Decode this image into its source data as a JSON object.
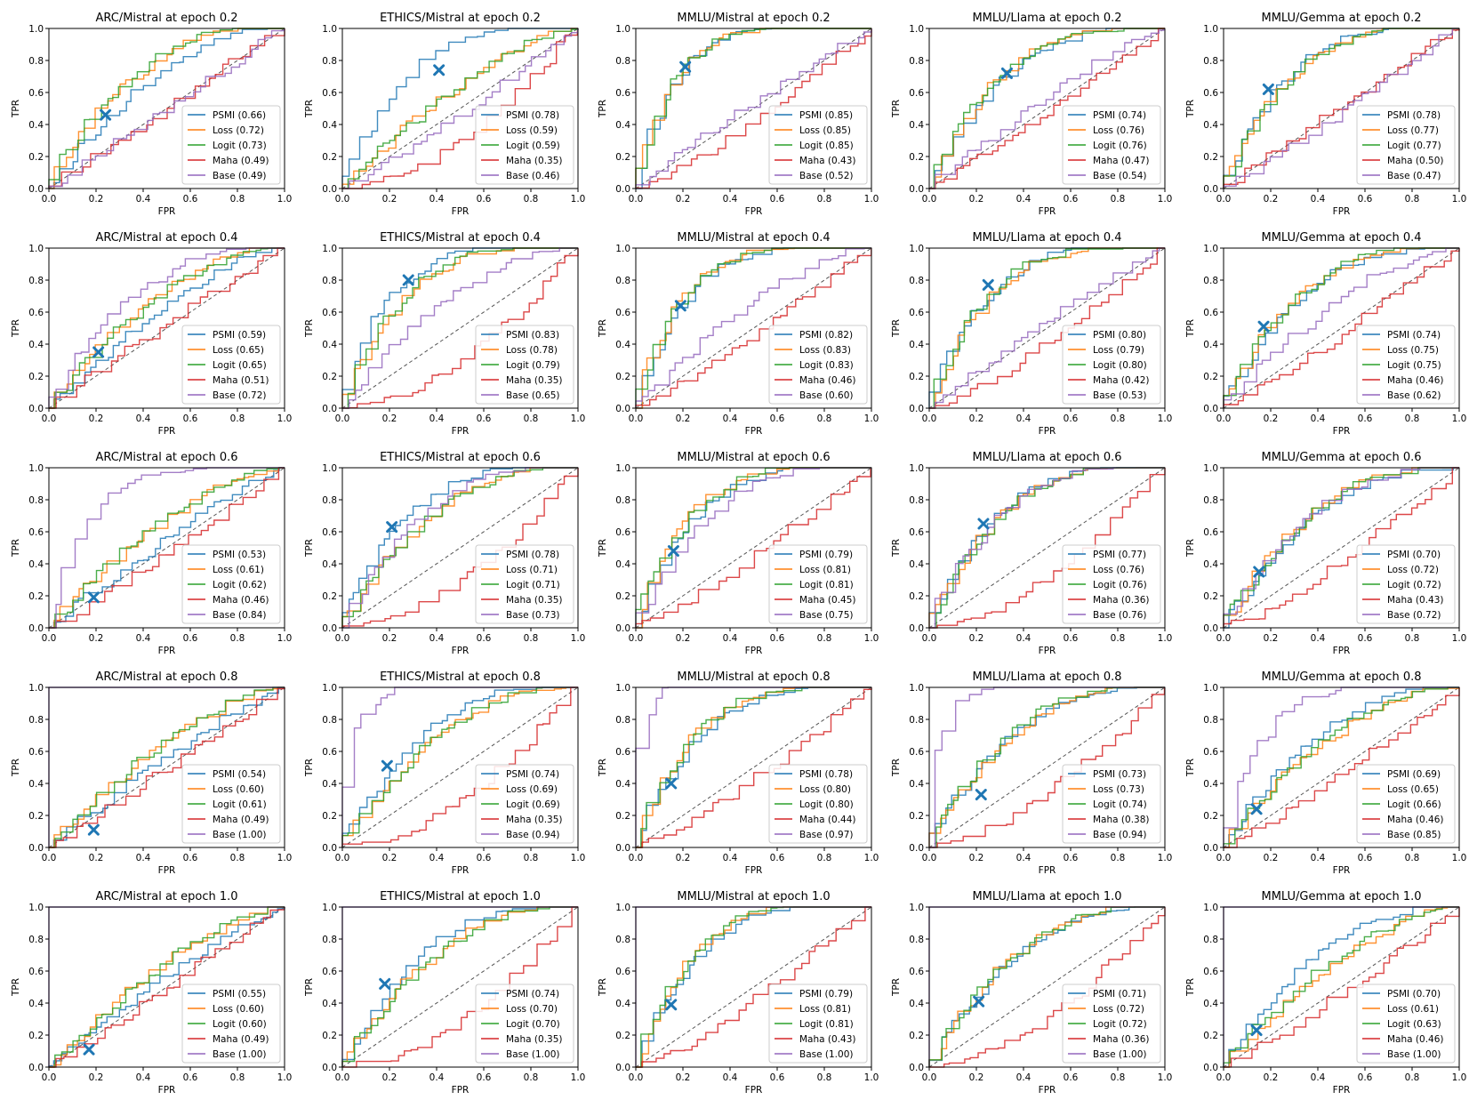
{
  "colors": {
    "PSMI": "#1f77b4",
    "Loss": "#ff7f0e",
    "Logit": "#2ca02c",
    "Maha": "#d62728",
    "Base": "#9467bd",
    "diagonal": "#555555",
    "marker": "#1f77b4"
  },
  "chart_data": {
    "type": "line",
    "layout": "5 rows x 5 columns grid of ROC curves",
    "xlabel": "FPR",
    "ylabel": "TPR",
    "xlim": [
      0,
      1
    ],
    "ylim": [
      0,
      1
    ],
    "ticks": [
      "0.0",
      "0.2",
      "0.4",
      "0.6",
      "0.8",
      "1.0"
    ],
    "legend_position": "lower-right",
    "series_order": [
      "PSMI",
      "Loss",
      "Logit",
      "Maha",
      "Base"
    ],
    "rows": [
      {
        "epoch": "0.2",
        "charts": [
          {
            "title": "ARC/Mistral at epoch 0.2",
            "marker": [
              0.24,
              0.46
            ],
            "auc": {
              "PSMI": "0.66",
              "Loss": "0.72",
              "Logit": "0.73",
              "Maha": "0.49",
              "Base": "0.49"
            }
          },
          {
            "title": "ETHICS/Mistral at epoch 0.2",
            "marker": [
              0.41,
              0.74
            ],
            "auc": {
              "PSMI": "0.78",
              "Loss": "0.59",
              "Logit": "0.59",
              "Maha": "0.35",
              "Base": "0.46"
            }
          },
          {
            "title": "MMLU/Mistral at epoch 0.2",
            "marker": [
              0.21,
              0.76
            ],
            "auc": {
              "PSMI": "0.85",
              "Loss": "0.85",
              "Logit": "0.85",
              "Maha": "0.43",
              "Base": "0.52"
            }
          },
          {
            "title": "MMLU/Llama at epoch 0.2",
            "marker": [
              0.33,
              0.72
            ],
            "auc": {
              "PSMI": "0.74",
              "Loss": "0.76",
              "Logit": "0.76",
              "Maha": "0.47",
              "Base": "0.54"
            }
          },
          {
            "title": "MMLU/Gemma at epoch 0.2",
            "marker": [
              0.19,
              0.62
            ],
            "auc": {
              "PSMI": "0.78",
              "Loss": "0.77",
              "Logit": "0.77",
              "Maha": "0.50",
              "Base": "0.47"
            }
          }
        ]
      },
      {
        "epoch": "0.4",
        "charts": [
          {
            "title": "ARC/Mistral at epoch 0.4",
            "marker": [
              0.21,
              0.35
            ],
            "auc": {
              "PSMI": "0.59",
              "Loss": "0.65",
              "Logit": "0.65",
              "Maha": "0.51",
              "Base": "0.72"
            }
          },
          {
            "title": "ETHICS/Mistral at epoch 0.4",
            "marker": [
              0.28,
              0.8
            ],
            "auc": {
              "PSMI": "0.83",
              "Loss": "0.78",
              "Logit": "0.79",
              "Maha": "0.35",
              "Base": "0.65"
            }
          },
          {
            "title": "MMLU/Mistral at epoch 0.4",
            "marker": [
              0.19,
              0.64
            ],
            "auc": {
              "PSMI": "0.82",
              "Loss": "0.83",
              "Logit": "0.83",
              "Maha": "0.46",
              "Base": "0.60"
            }
          },
          {
            "title": "MMLU/Llama at epoch 0.4",
            "marker": [
              0.25,
              0.77
            ],
            "auc": {
              "PSMI": "0.80",
              "Loss": "0.79",
              "Logit": "0.80",
              "Maha": "0.42",
              "Base": "0.53"
            }
          },
          {
            "title": "MMLU/Gemma at epoch 0.4",
            "marker": [
              0.17,
              0.51
            ],
            "auc": {
              "PSMI": "0.74",
              "Loss": "0.75",
              "Logit": "0.75",
              "Maha": "0.46",
              "Base": "0.62"
            }
          }
        ]
      },
      {
        "epoch": "0.6",
        "charts": [
          {
            "title": "ARC/Mistral at epoch 0.6",
            "marker": [
              0.19,
              0.19
            ],
            "auc": {
              "PSMI": "0.53",
              "Loss": "0.61",
              "Logit": "0.62",
              "Maha": "0.46",
              "Base": "0.84"
            }
          },
          {
            "title": "ETHICS/Mistral at epoch 0.6",
            "marker": [
              0.21,
              0.63
            ],
            "auc": {
              "PSMI": "0.78",
              "Loss": "0.71",
              "Logit": "0.71",
              "Maha": "0.35",
              "Base": "0.73"
            }
          },
          {
            "title": "MMLU/Mistral at epoch 0.6",
            "marker": [
              0.16,
              0.48
            ],
            "auc": {
              "PSMI": "0.79",
              "Loss": "0.81",
              "Logit": "0.81",
              "Maha": "0.45",
              "Base": "0.75"
            }
          },
          {
            "title": "MMLU/Llama at epoch 0.6",
            "marker": [
              0.23,
              0.65
            ],
            "auc": {
              "PSMI": "0.77",
              "Loss": "0.76",
              "Logit": "0.76",
              "Maha": "0.36",
              "Base": "0.76"
            }
          },
          {
            "title": "MMLU/Gemma at epoch 0.6",
            "marker": [
              0.15,
              0.35
            ],
            "auc": {
              "PSMI": "0.70",
              "Loss": "0.72",
              "Logit": "0.72",
              "Maha": "0.43",
              "Base": "0.72"
            }
          }
        ]
      },
      {
        "epoch": "0.8",
        "charts": [
          {
            "title": "ARC/Mistral at epoch 0.8",
            "marker": [
              0.19,
              0.11
            ],
            "auc": {
              "PSMI": "0.54",
              "Loss": "0.60",
              "Logit": "0.61",
              "Maha": "0.49",
              "Base": "1.00"
            }
          },
          {
            "title": "ETHICS/Mistral at epoch 0.8",
            "marker": [
              0.19,
              0.51
            ],
            "auc": {
              "PSMI": "0.74",
              "Loss": "0.69",
              "Logit": "0.69",
              "Maha": "0.35",
              "Base": "0.94"
            }
          },
          {
            "title": "MMLU/Mistral at epoch 0.8",
            "marker": [
              0.15,
              0.4
            ],
            "auc": {
              "PSMI": "0.78",
              "Loss": "0.80",
              "Logit": "0.80",
              "Maha": "0.44",
              "Base": "0.97"
            }
          },
          {
            "title": "MMLU/Llama at epoch 0.8",
            "marker": [
              0.22,
              0.33
            ],
            "auc": {
              "PSMI": "0.73",
              "Loss": "0.73",
              "Logit": "0.74",
              "Maha": "0.38",
              "Base": "0.94"
            }
          },
          {
            "title": "MMLU/Gemma at epoch 0.8",
            "marker": [
              0.14,
              0.24
            ],
            "auc": {
              "PSMI": "0.69",
              "Loss": "0.65",
              "Logit": "0.66",
              "Maha": "0.46",
              "Base": "0.85"
            }
          }
        ]
      },
      {
        "epoch": "1.0",
        "charts": [
          {
            "title": "ARC/Mistral at epoch 1.0",
            "marker": [
              0.17,
              0.11
            ],
            "auc": {
              "PSMI": "0.55",
              "Loss": "0.60",
              "Logit": "0.60",
              "Maha": "0.49",
              "Base": "1.00"
            }
          },
          {
            "title": "ETHICS/Mistral at epoch 1.0",
            "marker": [
              0.18,
              0.52
            ],
            "auc": {
              "PSMI": "0.74",
              "Loss": "0.70",
              "Logit": "0.70",
              "Maha": "0.35",
              "Base": "1.00"
            }
          },
          {
            "title": "MMLU/Mistral at epoch 1.0",
            "marker": [
              0.15,
              0.39
            ],
            "auc": {
              "PSMI": "0.79",
              "Loss": "0.81",
              "Logit": "0.81",
              "Maha": "0.43",
              "Base": "1.00"
            }
          },
          {
            "title": "MMLU/Llama at epoch 1.0",
            "marker": [
              0.21,
              0.41
            ],
            "auc": {
              "PSMI": "0.71",
              "Loss": "0.72",
              "Logit": "0.72",
              "Maha": "0.36",
              "Base": "1.00"
            }
          },
          {
            "title": "MMLU/Gemma at epoch 1.0",
            "marker": [
              0.14,
              0.23
            ],
            "auc": {
              "PSMI": "0.70",
              "Loss": "0.61",
              "Logit": "0.63",
              "Maha": "0.46",
              "Base": "1.00"
            }
          }
        ]
      }
    ]
  }
}
